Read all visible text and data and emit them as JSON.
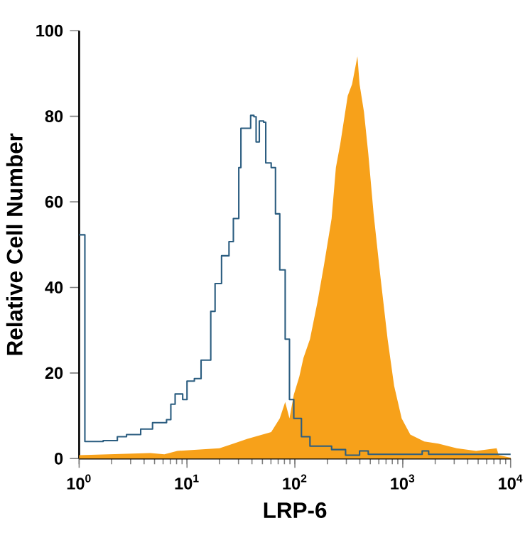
{
  "chart_data": {
    "type": "area",
    "xlabel": "LRP-6",
    "ylabel": "Relative Cell Number",
    "log": "x",
    "xlim": [
      1,
      10000
    ],
    "ylim": [
      0,
      100
    ],
    "xticks": [
      {
        "value": 1,
        "label": "10$^{0}$"
      },
      {
        "value": 10,
        "label": "10$^{1}$"
      },
      {
        "value": 100,
        "label": "10$^{2}$"
      },
      {
        "value": 1000,
        "label": "10$^{3}$"
      },
      {
        "value": 10000,
        "label": "10$^{4}$"
      }
    ],
    "yticks": [
      0,
      20,
      40,
      60,
      80,
      100
    ],
    "series": [
      {
        "color": "#f7a11a",
        "x": [
          1,
          4.57,
          6.17,
          8.13,
          20.0,
          26.9,
          36.3,
          60.3,
          72.4,
          81.3,
          89.1,
          97.7,
          110,
          120,
          138,
          162,
          186,
          219,
          240,
          263,
          309,
          339,
          380,
          398,
          437,
          479,
          537,
          617,
          724,
          832,
          977,
          1175,
          1585,
          2138,
          3162,
          4786,
          7413,
          7762,
          10000
        ],
        "values": [
          0.8,
          1.3,
          1.0,
          1.8,
          2.4,
          3.5,
          4.6,
          6.2,
          9.4,
          13.2,
          9.4,
          14.9,
          19.2,
          23.5,
          27.9,
          36.6,
          45.2,
          56.1,
          68.0,
          73.4,
          84.8,
          87.5,
          94.0,
          87.5,
          81.0,
          71.3,
          57.2,
          43.1,
          27.9,
          17.0,
          9.4,
          5.6,
          4.0,
          3.5,
          2.4,
          1.8,
          2.4,
          0.8,
          0.2
        ]
      },
      {
        "type": "step",
        "color": "#2b5d80",
        "x": [
          1,
          1.13,
          1.67,
          2.26,
          2.75,
          3.72,
          4.79,
          6.46,
          7.08,
          7.76,
          9.12,
          10,
          11.7,
          13.5,
          16.6,
          18.2,
          20.9,
          24.5,
          26.9,
          30.2,
          31.6,
          36.3,
          38.9,
          41.7,
          43.7,
          46.8,
          51.3,
          53.7,
          60.3,
          66.1,
          72.4,
          81.3,
          89.1,
          97.7,
          115,
          138,
          219,
          295,
          398,
          479,
          1514,
          1738,
          7079,
          10000
        ],
        "values": [
          52.3,
          4.0,
          4.2,
          5.1,
          5.6,
          6.9,
          8.4,
          9.1,
          12.7,
          15.1,
          13.8,
          18.1,
          18.7,
          23.0,
          34.4,
          40.9,
          47.4,
          50.7,
          56.1,
          68.0,
          77.2,
          77.2,
          80.2,
          79.9,
          74.0,
          78.9,
          78.6,
          69.1,
          68.0,
          57.2,
          44.1,
          27.9,
          13.8,
          9.4,
          5.1,
          2.9,
          2.1,
          0.8,
          1.8,
          1.0,
          1.8,
          1.0,
          1.0,
          1.0
        ]
      }
    ]
  }
}
